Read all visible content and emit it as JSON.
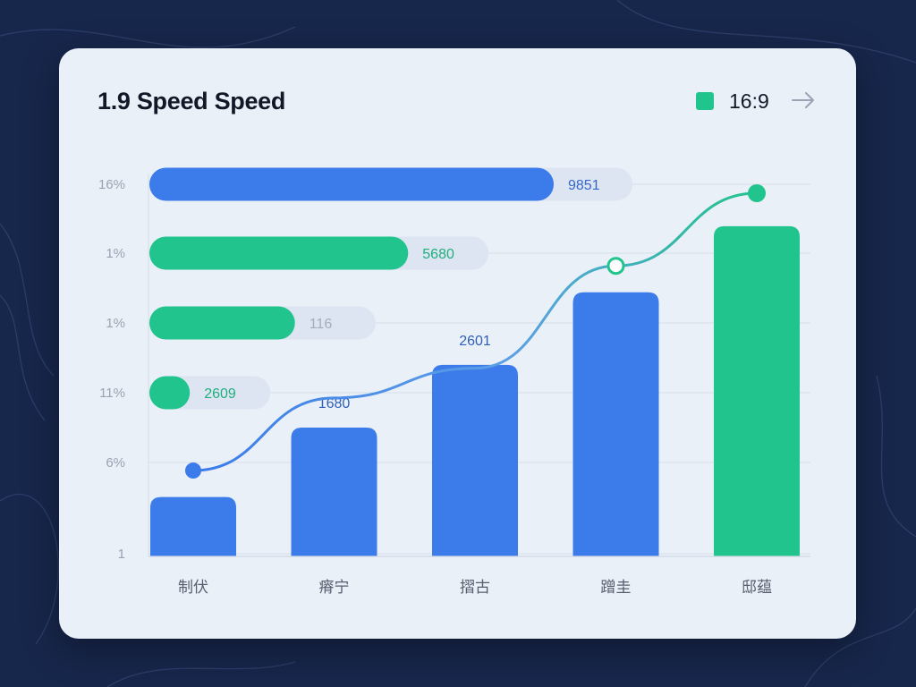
{
  "colors": {
    "background": "#17264b",
    "card": "#eaf0f8",
    "blue": "#3b7bea",
    "green": "#21c48c",
    "track": "#dde5f2",
    "grid": "#d6deea"
  },
  "header": {
    "title": "1.9 Speed Speed",
    "legend_label": "16:9",
    "arrow_icon": "arrow-right-icon"
  },
  "chart_data": {
    "type": "bar",
    "title": "1.9 Speed Speed",
    "legend": [
      "16:9"
    ],
    "legend_position": "top-right",
    "y_tick_labels": [
      "16%",
      "1%",
      "1%",
      "11%",
      "6%",
      "1"
    ],
    "categories": [
      "制伏",
      "瘠宁",
      "摺古",
      "蹭圭",
      "邸蕴"
    ],
    "series": [
      {
        "values": [
          18,
          39,
          58,
          80,
          100
        ],
        "colors": [
          "#3b7bea",
          "#3b7bea",
          "#3b7bea",
          "#3b7bea",
          "#21c48c"
        ]
      },
      {
        "type": "line",
        "color": "#3b7bea",
        "values": [
          26,
          48,
          57,
          88,
          110
        ]
      }
    ],
    "bar_labels": [
      {
        "category": "瘠宁",
        "text": "1680"
      },
      {
        "category": "摺古",
        "text": "2601"
      }
    ],
    "horizontal_bars": [
      {
        "value": 100,
        "label": "9851",
        "color": "#3b7bea"
      },
      {
        "value": 64,
        "label": "5680",
        "color": "#21c48c"
      },
      {
        "value": 36,
        "label": "116",
        "color": "#21c48c"
      },
      {
        "value": 10,
        "label": "2609",
        "color": "#21c48c"
      }
    ],
    "ylim": [
      0,
      110
    ],
    "grid": true
  }
}
